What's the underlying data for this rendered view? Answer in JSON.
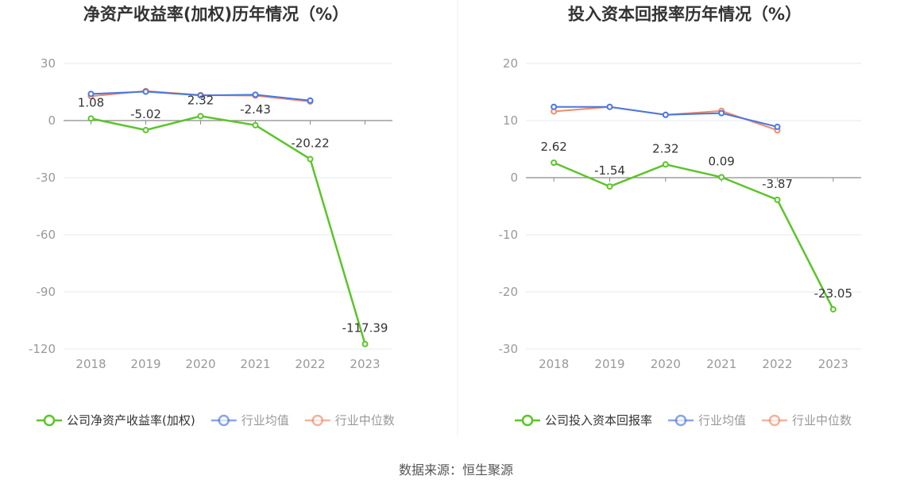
{
  "source": "数据来源：恒生聚源",
  "colors": {
    "company": "#5cc42a",
    "industry_avg": "#4a77e0",
    "industry_median": "#f08a6a",
    "grid": "#e6e9f0",
    "axis": "#8a8a8a",
    "tick_text": "#999999",
    "divider": "#eeeeee"
  },
  "chart_data": [
    {
      "type": "line",
      "title": "净资产收益率(加权)历年情况（%）",
      "categories": [
        "2018",
        "2019",
        "2020",
        "2021",
        "2022",
        "2023"
      ],
      "ylim": [
        -120,
        30
      ],
      "yticks": [
        30,
        0,
        -30,
        -60,
        -90,
        -120
      ],
      "ytick_labels": [
        "30",
        "0",
        "-30",
        "-60",
        "-90",
        "-120"
      ],
      "grid": true,
      "legend_position": "bottom",
      "series": [
        {
          "name": "公司净资产收益率(加权)",
          "key": "company",
          "values": [
            1.08,
            -5.02,
            2.32,
            -2.43,
            -20.22,
            -117.39
          ],
          "labels": [
            "1.08",
            "-5.02",
            "2.32",
            "-2.43",
            "-20.22",
            "-117.39"
          ]
        },
        {
          "name": "行业均值",
          "key": "industry_avg",
          "values": [
            14.0,
            15.2,
            13.2,
            13.6,
            10.5,
            null
          ]
        },
        {
          "name": "行业中位数",
          "key": "industry_median",
          "values": [
            12.8,
            15.5,
            13.4,
            13.1,
            10.0,
            null
          ]
        }
      ]
    },
    {
      "type": "line",
      "title": "投入资本回报率历年情况（%）",
      "categories": [
        "2018",
        "2019",
        "2020",
        "2021",
        "2022",
        "2023"
      ],
      "ylim": [
        -30,
        20
      ],
      "yticks": [
        20,
        10,
        0,
        -10,
        -20,
        -30
      ],
      "ytick_labels": [
        "20",
        "10",
        "0",
        "-10",
        "-20",
        "-30"
      ],
      "grid": true,
      "legend_position": "bottom",
      "series": [
        {
          "name": "公司投入资本回报率",
          "key": "company",
          "values": [
            2.62,
            -1.54,
            2.32,
            0.09,
            -3.87,
            -23.05
          ],
          "labels": [
            "2.62",
            "-1.54",
            "2.32",
            "0.09",
            "-3.87",
            "-23.05"
          ]
        },
        {
          "name": "行业均值",
          "key": "industry_avg",
          "values": [
            12.4,
            12.4,
            11.0,
            11.3,
            8.9,
            null
          ]
        },
        {
          "name": "行业中位数",
          "key": "industry_median",
          "values": [
            11.6,
            12.4,
            11.0,
            11.7,
            8.3,
            null
          ]
        }
      ]
    }
  ]
}
